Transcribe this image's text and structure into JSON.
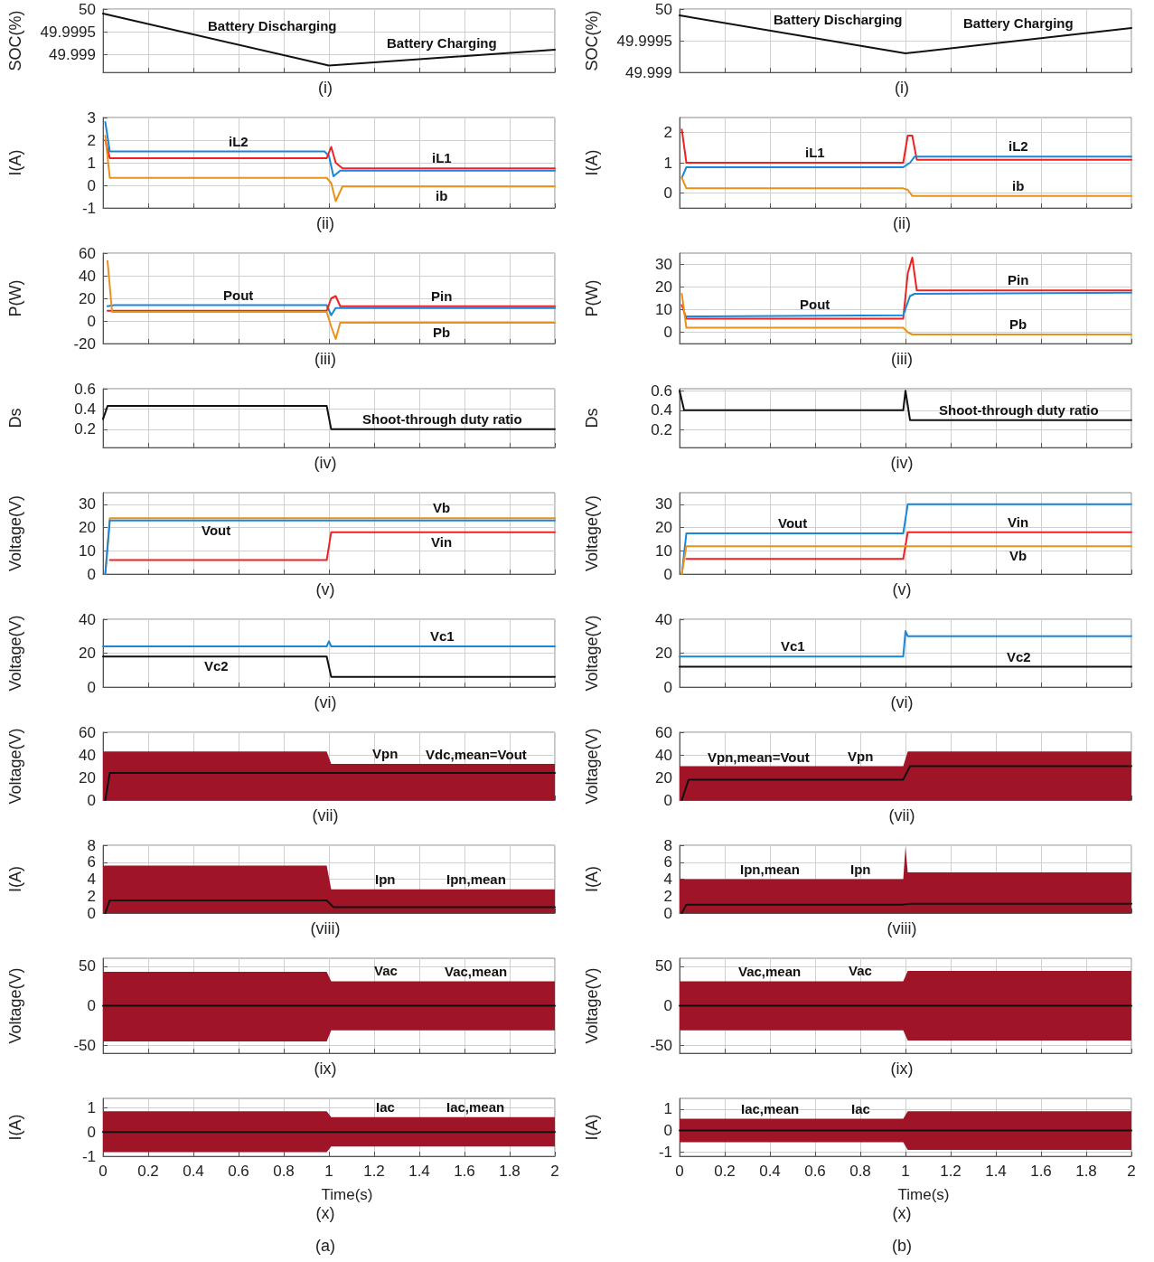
{
  "chart_data": [
    {
      "type": "line",
      "ylabel": "SOC(%)",
      "xlim": [
        0,
        2
      ],
      "xticks": [
        0,
        0.2,
        0.4,
        0.6,
        0.8,
        1,
        1.2,
        1.4,
        1.6,
        1.8,
        2
      ],
      "ylim": [
        49.9986,
        50
      ],
      "yticks": [
        49.999,
        49.9995,
        50
      ],
      "grid": true,
      "tick_labels": "y",
      "series": [
        {
          "color": "#111111",
          "x": [
            0,
            1,
            2
          ],
          "values": [
            49.9999,
            49.99875,
            49.9991
          ]
        }
      ],
      "annotations": [
        {
          "text": "Battery Discharging",
          "x": 0.75,
          "y": 49.99904
        },
        {
          "text": "Battery Charging",
          "x": 1.5,
          "y": 49.99893
        },
        "(i)"
      ]
    },
    {
      "type": "line",
      "ylabel": "SOC(%)",
      "xlim": [
        0,
        2
      ],
      "xticks": [
        0,
        0.2,
        0.4,
        0.6,
        0.8,
        1,
        1.2,
        1.4,
        1.6,
        1.8,
        2
      ],
      "ylim": [
        49.999,
        50
      ],
      "yticks": [
        49.999,
        49.9995,
        50
      ],
      "grid": true,
      "tick_labels": "y",
      "series": [
        {
          "color": "#111111",
          "x": [
            0,
            1,
            2
          ],
          "values": [
            49.9999,
            49.9993,
            49.9997
          ]
        }
      ],
      "annotations": [
        {
          "text": "Battery Discharging",
          "x": 0.7,
          "y": 49.99948
        },
        {
          "text": "Battery Charging",
          "x": 1.5,
          "y": 49.9995
        },
        "(i)"
      ]
    },
    {
      "type": "line",
      "ylabel": "I(A)",
      "xlim": [
        0,
        2
      ],
      "xticks": [
        0,
        0.2,
        0.4,
        0.6,
        0.8,
        1,
        1.2,
        1.4,
        1.6,
        1.8,
        2
      ],
      "ylim": [
        -1,
        3
      ],
      "yticks": [
        -1,
        0,
        1,
        2,
        3
      ],
      "grid": true,
      "tick_labels": "y",
      "series": [
        {
          "color": "#1a86d8",
          "x": [
            0.01,
            0.03,
            0.98,
            1,
            1.02,
            1.05,
            2
          ],
          "values": [
            2.8,
            1.5,
            1.5,
            1.3,
            0.4,
            0.65,
            0.65
          ]
        },
        {
          "color": "#ee2222",
          "x": [
            0.01,
            0.03,
            0.99,
            1.01,
            1.03,
            1.06,
            2
          ],
          "values": [
            2,
            1.2,
            1.2,
            1.7,
            1,
            0.75,
            0.75
          ]
        },
        {
          "color": "#e8921c",
          "x": [
            0.01,
            0.03,
            0.99,
            1.01,
            1.03,
            1.06,
            2
          ],
          "values": [
            2.2,
            0.33,
            0.33,
            0.1,
            -0.7,
            -0.05,
            -0.05
          ]
        }
      ],
      "annotations": [
        {
          "text": "iL2",
          "x": 0.6,
          "y": 1.5
        },
        {
          "text": "iL1",
          "x": 1.5,
          "y": 0.75
        },
        {
          "text": "ib",
          "x": 1.5,
          "y": -0.05
        },
        "(ii)"
      ]
    },
    {
      "type": "line",
      "ylabel": "I(A)",
      "xlim": [
        0,
        2
      ],
      "xticks": [
        0,
        0.2,
        0.4,
        0.6,
        0.8,
        1,
        1.2,
        1.4,
        1.6,
        1.8,
        2
      ],
      "ylim": [
        -0.5,
        2.5
      ],
      "yticks": [
        0,
        1,
        2
      ],
      "grid": true,
      "tick_labels": "y",
      "series": [
        {
          "color": "#ee2222",
          "x": [
            0.01,
            0.03,
            0.99,
            1.01,
            1.03,
            1.05,
            2
          ],
          "values": [
            2.1,
            1,
            1,
            1.9,
            1.9,
            1.1,
            1.1
          ]
        },
        {
          "color": "#1a86d8",
          "x": [
            0.01,
            0.03,
            0.99,
            1.02,
            1.04,
            2
          ],
          "values": [
            0.5,
            0.85,
            0.85,
            1,
            1.2,
            1.2
          ]
        },
        {
          "color": "#e8921c",
          "x": [
            0.01,
            0.03,
            0.99,
            1.01,
            1.03,
            2
          ],
          "values": [
            0.5,
            0.15,
            0.15,
            0.1,
            -0.1,
            -0.1
          ]
        }
      ],
      "annotations": [
        {
          "text": "iL1",
          "x": 0.6,
          "y": 1
        },
        {
          "text": "iL2",
          "x": 1.5,
          "y": 1.2
        },
        {
          "text": "ib",
          "x": 1.5,
          "y": -0.1
        },
        "(ii)"
      ]
    },
    {
      "type": "line",
      "ylabel": "P(W)",
      "xlim": [
        0,
        2
      ],
      "xticks": [
        0,
        0.2,
        0.4,
        0.6,
        0.8,
        1,
        1.2,
        1.4,
        1.6,
        1.8,
        2
      ],
      "ylim": [
        -20,
        60
      ],
      "yticks": [
        -20,
        0,
        20,
        40,
        60
      ],
      "grid": true,
      "tick_labels": "y",
      "series": [
        {
          "color": "#1a86d8",
          "x": [
            0.02,
            0.05,
            0.99,
            1.01,
            1.03,
            2
          ],
          "values": [
            13,
            14,
            14,
            5,
            11.5,
            11.5
          ]
        },
        {
          "color": "#ee2222",
          "x": [
            0.02,
            0.99,
            1.01,
            1.03,
            1.05,
            2
          ],
          "values": [
            9,
            9,
            20,
            22,
            13,
            13
          ]
        },
        {
          "color": "#e8921c",
          "x": [
            0.02,
            0.04,
            0.99,
            1.01,
            1.03,
            1.05,
            2
          ],
          "values": [
            53,
            8,
            8,
            -5,
            -16,
            -1.5,
            -1.5
          ]
        }
      ],
      "annotations": [
        {
          "text": "Pout",
          "x": 0.6,
          "y": 14
        },
        {
          "text": "Pin",
          "x": 1.5,
          "y": 13
        },
        {
          "text": "Pb",
          "x": 1.5,
          "y": -1.5
        },
        "(iii)"
      ]
    },
    {
      "type": "line",
      "ylabel": "P(W)",
      "xlim": [
        0,
        2
      ],
      "xticks": [
        0,
        0.2,
        0.4,
        0.6,
        0.8,
        1,
        1.2,
        1.4,
        1.6,
        1.8,
        2
      ],
      "ylim": [
        -5,
        35
      ],
      "yticks": [
        0,
        10,
        20,
        30
      ],
      "grid": true,
      "tick_labels": "y",
      "series": [
        {
          "color": "#ee2222",
          "x": [
            0.01,
            0.03,
            0.99,
            1.01,
            1.03,
            1.05,
            2
          ],
          "values": [
            12,
            6,
            6,
            26,
            33,
            18.5,
            18.5
          ]
        },
        {
          "color": "#1a86d8",
          "x": [
            0.03,
            0.1,
            0.99,
            1.02,
            1.04,
            2
          ],
          "values": [
            7,
            7,
            7.5,
            16,
            17,
            17.5
          ]
        },
        {
          "color": "#e8921c",
          "x": [
            0.01,
            0.03,
            0.99,
            1.01,
            1.03,
            2
          ],
          "values": [
            17,
            2,
            2,
            0,
            -1,
            -1
          ]
        }
      ],
      "annotations": [
        {
          "text": "Pout",
          "x": 0.6,
          "y": 7.3
        },
        {
          "text": "Pin",
          "x": 1.5,
          "y": 18.5
        },
        {
          "text": "Pb",
          "x": 1.5,
          "y": -1
        },
        "(iii)"
      ]
    },
    {
      "type": "line",
      "ylabel": "Ds",
      "xlim": [
        0,
        2
      ],
      "xticks": [
        0,
        0.2,
        0.4,
        0.6,
        0.8,
        1,
        1.2,
        1.4,
        1.6,
        1.8,
        2
      ],
      "ylim": [
        0.02,
        0.6
      ],
      "yticks": [
        0.2,
        0.4,
        0.6
      ],
      "grid": true,
      "tick_labels": "y",
      "series": [
        {
          "color": "#111111",
          "x": [
            0,
            0.02,
            0.99,
            1.01,
            2
          ],
          "values": [
            0.3,
            0.43,
            0.43,
            0.2,
            0.2
          ]
        }
      ],
      "annotations": [
        {
          "text": "Shoot-through duty ratio",
          "x": 1.5,
          "y": 0.2
        },
        "(iv)"
      ]
    },
    {
      "type": "line",
      "ylabel": "Ds",
      "xlim": [
        0,
        2
      ],
      "xticks": [
        0,
        0.2,
        0.4,
        0.6,
        0.8,
        1,
        1.2,
        1.4,
        1.6,
        1.8,
        2
      ],
      "ylim": [
        0.02,
        0.62
      ],
      "yticks": [
        0.2,
        0.4,
        0.6
      ],
      "grid": true,
      "tick_labels": "y",
      "series": [
        {
          "color": "#111111",
          "x": [
            0,
            0.02,
            0.99,
            1,
            1.02,
            2
          ],
          "values": [
            0.6,
            0.4,
            0.4,
            0.6,
            0.3,
            0.3
          ]
        }
      ],
      "annotations": [
        {
          "text": "Shoot-through duty ratio",
          "x": 1.5,
          "y": 0.3
        },
        "(iv)"
      ]
    },
    {
      "type": "line",
      "ylabel": "Voltage(V)",
      "xlim": [
        0,
        2
      ],
      "xticks": [
        0,
        0.2,
        0.4,
        0.6,
        0.8,
        1,
        1.2,
        1.4,
        1.6,
        1.8,
        2
      ],
      "ylim": [
        0,
        35
      ],
      "yticks": [
        0,
        10,
        20,
        30
      ],
      "grid": true,
      "tick_labels": "y",
      "series": [
        {
          "color": "#e8921c",
          "x": [
            0.01,
            0.03,
            2
          ],
          "values": [
            0,
            24,
            24
          ]
        },
        {
          "color": "#1a86d8",
          "x": [
            0.01,
            0.03,
            2
          ],
          "values": [
            0,
            23,
            23
          ]
        },
        {
          "color": "#ee2222",
          "x": [
            0.03,
            0.99,
            1.01,
            2
          ],
          "values": [
            6,
            6,
            18,
            18
          ]
        }
      ],
      "annotations": [
        {
          "text": "Vout",
          "x": 0.5,
          "y": 23
        },
        {
          "text": "Vb",
          "x": 1.5,
          "y": 24
        },
        {
          "text": "Vin",
          "x": 1.5,
          "y": 18
        },
        "(v)"
      ]
    },
    {
      "type": "line",
      "ylabel": "Voltage(V)",
      "xlim": [
        0,
        2
      ],
      "xticks": [
        0,
        0.2,
        0.4,
        0.6,
        0.8,
        1,
        1.2,
        1.4,
        1.6,
        1.8,
        2
      ],
      "ylim": [
        0,
        35
      ],
      "yticks": [
        0,
        10,
        20,
        30
      ],
      "grid": true,
      "tick_labels": "y",
      "series": [
        {
          "color": "#1a86d8",
          "x": [
            0.01,
            0.03,
            0.99,
            1.01,
            2
          ],
          "values": [
            0,
            17.5,
            17.5,
            30,
            30
          ]
        },
        {
          "color": "#ee2222",
          "x": [
            0.03,
            0.99,
            1.01,
            2
          ],
          "values": [
            6.5,
            6.5,
            18,
            18
          ]
        },
        {
          "color": "#e8921c",
          "x": [
            0.01,
            0.03,
            2
          ],
          "values": [
            0,
            12,
            12
          ]
        }
      ],
      "annotations": [
        {
          "text": "Vout",
          "x": 0.5,
          "y": 17.5
        },
        {
          "text": "Vin",
          "x": 1.5,
          "y": 18
        },
        {
          "text": "Vb",
          "x": 1.5,
          "y": 12
        },
        "(v)"
      ]
    },
    {
      "type": "line",
      "ylabel": "Voltage(V)",
      "xlim": [
        0,
        2
      ],
      "xticks": [
        0,
        0.2,
        0.4,
        0.6,
        0.8,
        1,
        1.2,
        1.4,
        1.6,
        1.8,
        2
      ],
      "ylim": [
        0,
        40
      ],
      "yticks": [
        0,
        20,
        40
      ],
      "grid": true,
      "tick_labels": "y",
      "series": [
        {
          "color": "#1a86d8",
          "x": [
            0,
            0.99,
            1,
            1.01,
            2
          ],
          "values": [
            24,
            24,
            27,
            24,
            24
          ]
        },
        {
          "color": "#111111",
          "x": [
            0,
            0.99,
            1.01,
            2
          ],
          "values": [
            18,
            18,
            6,
            6
          ]
        }
      ],
      "annotations": [
        {
          "text": "Vc1",
          "x": 1.5,
          "y": 24
        },
        {
          "text": "Vc2",
          "x": 0.5,
          "y": 18
        },
        "(vi)"
      ]
    },
    {
      "type": "line",
      "ylabel": "Voltage(V)",
      "xlim": [
        0,
        2
      ],
      "xticks": [
        0,
        0.2,
        0.4,
        0.6,
        0.8,
        1,
        1.2,
        1.4,
        1.6,
        1.8,
        2
      ],
      "ylim": [
        0,
        40
      ],
      "yticks": [
        0,
        20,
        40
      ],
      "grid": true,
      "tick_labels": "y",
      "series": [
        {
          "color": "#1a86d8",
          "x": [
            0,
            0.99,
            1,
            1.01,
            2
          ],
          "values": [
            18,
            18,
            33,
            30,
            30
          ]
        },
        {
          "color": "#111111",
          "x": [
            0,
            2
          ],
          "values": [
            12,
            12
          ]
        }
      ],
      "annotations": [
        {
          "text": "Vc1",
          "x": 0.5,
          "y": 18
        },
        {
          "text": "Vc2",
          "x": 1.5,
          "y": 12
        },
        "(vi)"
      ]
    },
    {
      "type": "line",
      "ylabel": "Voltage(V)",
      "xlim": [
        0,
        2
      ],
      "xticks": [
        0,
        0.2,
        0.4,
        0.6,
        0.8,
        1,
        1.2,
        1.4,
        1.6,
        1.8,
        2
      ],
      "ylim": [
        0,
        60
      ],
      "yticks": [
        0,
        20,
        40,
        60
      ],
      "grid": true,
      "tick_labels": "y",
      "series": [
        {
          "color": "#a01428",
          "x": [
            0,
            0.99,
            1.01,
            2
          ],
          "values": [
            null,
            null,
            null,
            null
          ],
          "lower": [
            0,
            0,
            0,
            0
          ],
          "upper": [
            43,
            43,
            32,
            32
          ]
        },
        {
          "color": "#111111",
          "x": [
            0.01,
            0.03,
            2
          ],
          "values": [
            0,
            24,
            24
          ]
        }
      ],
      "annotations": [
        {
          "text": "Vpn",
          "x": 1.25,
          "y": 32
        },
        {
          "text": "Vdc,mean=Vout",
          "x": 1.65,
          "y": 24
        },
        "(vii)"
      ]
    },
    {
      "type": "line",
      "ylabel": "Voltage(V)",
      "xlim": [
        0,
        2
      ],
      "xticks": [
        0,
        0.2,
        0.4,
        0.6,
        0.8,
        1,
        1.2,
        1.4,
        1.6,
        1.8,
        2
      ],
      "ylim": [
        0,
        60
      ],
      "yticks": [
        0,
        20,
        40,
        60
      ],
      "grid": true,
      "tick_labels": "y",
      "series": [
        {
          "color": "#a01428",
          "x": [
            0,
            0.99,
            1.01,
            2
          ],
          "values": [
            null,
            null,
            null,
            null
          ],
          "lower": [
            0,
            0,
            0,
            0
          ],
          "upper": [
            30,
            30,
            43,
            43
          ]
        },
        {
          "color": "#111111",
          "x": [
            0.01,
            0.04,
            0.99,
            1.02,
            2
          ],
          "values": [
            0,
            18,
            18,
            30,
            30
          ]
        }
      ],
      "annotations": [
        {
          "text": "Vpn,mean=Vout",
          "x": 0.35,
          "y": 18
        },
        {
          "text": "Vpn",
          "x": 0.8,
          "y": 30
        },
        "(vii)"
      ]
    },
    {
      "type": "line",
      "ylabel": "I(A)",
      "xlim": [
        0,
        2
      ],
      "xticks": [
        0,
        0.2,
        0.4,
        0.6,
        0.8,
        1,
        1.2,
        1.4,
        1.6,
        1.8,
        2
      ],
      "ylim": [
        0,
        8
      ],
      "yticks": [
        0,
        2,
        4,
        6,
        8
      ],
      "grid": true,
      "tick_labels": "y",
      "series": [
        {
          "color": "#a01428",
          "x": [
            0,
            0.99,
            1.01,
            2
          ],
          "values": [
            null,
            null,
            null,
            null
          ],
          "lower": [
            0,
            0,
            0,
            0
          ],
          "upper": [
            5.6,
            5.6,
            2.8,
            2.8
          ]
        },
        {
          "color": "#111111",
          "x": [
            0.01,
            0.03,
            0.99,
            1.02,
            2
          ],
          "values": [
            0,
            1.5,
            1.5,
            0.7,
            0.7
          ]
        }
      ],
      "annotations": [
        {
          "text": "Ipn",
          "x": 1.25,
          "y": 2.8
        },
        {
          "text": "Ipn,mean",
          "x": 1.65,
          "y": 0.7
        },
        "(viii)"
      ]
    },
    {
      "type": "line",
      "ylabel": "I(A)",
      "xlim": [
        0,
        2
      ],
      "xticks": [
        0,
        0.2,
        0.4,
        0.6,
        0.8,
        1,
        1.2,
        1.4,
        1.6,
        1.8,
        2
      ],
      "ylim": [
        0,
        8
      ],
      "yticks": [
        0,
        2,
        4,
        6,
        8
      ],
      "grid": true,
      "tick_labels": "y",
      "series": [
        {
          "color": "#a01428",
          "x": [
            0,
            0.99,
            1,
            1.01,
            2
          ],
          "values": [
            null,
            null,
            null,
            null,
            null
          ],
          "lower": [
            0,
            0,
            0,
            0,
            0
          ],
          "upper": [
            4,
            4,
            7.8,
            4.8,
            4.8
          ]
        },
        {
          "color": "#111111",
          "x": [
            0.01,
            0.03,
            0.99,
            1.02,
            2
          ],
          "values": [
            0,
            1,
            1,
            1.1,
            1.1
          ]
        }
      ],
      "annotations": [
        {
          "text": "Ipn,mean",
          "x": 0.4,
          "y": 1
        },
        {
          "text": "Ipn",
          "x": 0.8,
          "y": 4
        },
        "(viii)"
      ]
    },
    {
      "type": "line",
      "ylabel": "Voltage(V)",
      "xlim": [
        0,
        2
      ],
      "xticks": [
        0,
        0.2,
        0.4,
        0.6,
        0.8,
        1,
        1.2,
        1.4,
        1.6,
        1.8,
        2
      ],
      "ylim": [
        -60,
        60
      ],
      "yticks": [
        -50,
        0,
        50
      ],
      "grid": true,
      "tick_labels": "y",
      "series": [
        {
          "color": "#a01428",
          "x": [
            0,
            0.99,
            1.01,
            2
          ],
          "values": [
            null,
            null,
            null,
            null
          ],
          "lower": [
            -45,
            -45,
            -31,
            -31
          ],
          "upper": [
            43,
            43,
            31,
            31
          ]
        },
        {
          "color": "#111111",
          "x": [
            0,
            2
          ],
          "values": [
            0,
            0
          ]
        }
      ],
      "annotations": [
        {
          "text": "Vac",
          "x": 1.25,
          "y": 31
        },
        {
          "text": "Vac,mean",
          "x": 1.65,
          "y": 0
        },
        "(ix)"
      ]
    },
    {
      "type": "line",
      "ylabel": "Voltage(V)",
      "xlim": [
        0,
        2
      ],
      "xticks": [
        0,
        0.2,
        0.4,
        0.6,
        0.8,
        1,
        1.2,
        1.4,
        1.6,
        1.8,
        2
      ],
      "ylim": [
        -60,
        60
      ],
      "yticks": [
        -50,
        0,
        50
      ],
      "grid": true,
      "tick_labels": "y",
      "series": [
        {
          "color": "#a01428",
          "x": [
            0,
            0.99,
            1.01,
            2
          ],
          "values": [
            null,
            null,
            null,
            null
          ],
          "lower": [
            -31,
            -31,
            -44,
            -44
          ],
          "upper": [
            31,
            31,
            44,
            44
          ]
        },
        {
          "color": "#111111",
          "x": [
            0,
            2
          ],
          "values": [
            0,
            0
          ]
        }
      ],
      "annotations": [
        {
          "text": "Vac,mean",
          "x": 0.4,
          "y": 0
        },
        {
          "text": "Vac",
          "x": 0.8,
          "y": 31
        },
        "(ix)"
      ]
    },
    {
      "type": "line",
      "ylabel": "I(A)",
      "xlabel": "Time(s)",
      "xlim": [
        0,
        2
      ],
      "xticks": [
        0,
        0.2,
        0.4,
        0.6,
        0.8,
        1,
        1.2,
        1.4,
        1.6,
        1.8,
        2
      ],
      "ylim": [
        -1,
        1.4
      ],
      "yticks": [
        -1,
        0,
        1
      ],
      "grid": true,
      "series": [
        {
          "color": "#a01428",
          "x": [
            0,
            0.99,
            1.01,
            2
          ],
          "values": [
            null,
            null,
            null,
            null
          ],
          "lower": [
            -0.83,
            -0.83,
            -0.6,
            -0.6
          ],
          "upper": [
            0.87,
            0.87,
            0.62,
            0.62
          ]
        },
        {
          "color": "#111111",
          "x": [
            0,
            2
          ],
          "values": [
            0,
            0
          ]
        }
      ],
      "annotations": [
        {
          "text": "Iac",
          "x": 1.25,
          "y": 0.62
        },
        {
          "text": "Iac,mean",
          "x": 1.65,
          "y": 0
        },
        "(x)",
        "(a)"
      ]
    },
    {
      "type": "line",
      "ylabel": "I(A)",
      "xlabel": "Time(s)",
      "xlim": [
        0,
        2
      ],
      "xticks": [
        0,
        0.2,
        0.4,
        0.6,
        0.8,
        1,
        1.2,
        1.4,
        1.6,
        1.8,
        2
      ],
      "ylim": [
        -1.2,
        1.5
      ],
      "yticks": [
        -1,
        0,
        1
      ],
      "grid": true,
      "series": [
        {
          "color": "#a01428",
          "x": [
            0,
            0.99,
            1.01,
            2
          ],
          "values": [
            null,
            null,
            null,
            null
          ],
          "lower": [
            -0.55,
            -0.55,
            -0.9,
            -0.9
          ],
          "upper": [
            0.55,
            0.55,
            0.9,
            0.9
          ]
        },
        {
          "color": "#111111",
          "x": [
            0,
            2
          ],
          "values": [
            0,
            0
          ]
        }
      ],
      "annotations": [
        {
          "text": "Iac,mean",
          "x": 0.4,
          "y": 0
        },
        {
          "text": "Iac",
          "x": 0.8,
          "y": 0.55
        },
        "(x)",
        "(b)"
      ]
    }
  ]
}
